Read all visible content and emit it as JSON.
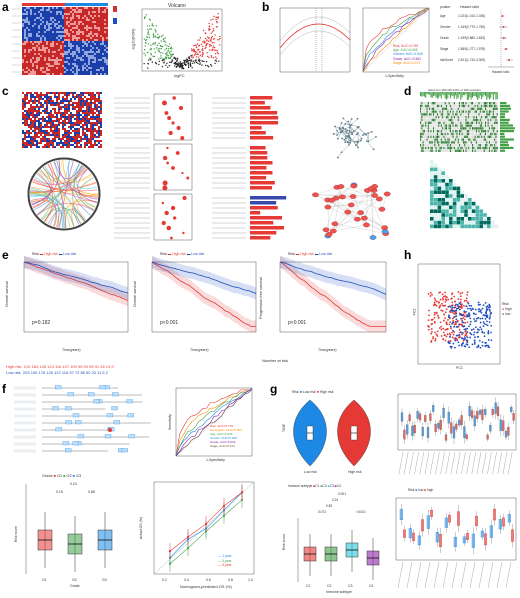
{
  "panels": {
    "a": "a",
    "b": "b",
    "c": "c",
    "d": "d",
    "e": "e",
    "f": "f",
    "g": "g",
    "h": "h"
  },
  "a": {
    "volcano_title": "Volcano",
    "volcano_xlabel": "logFC",
    "volcano_ylabel": "-log10(FDR)"
  },
  "b": {
    "roc_xlabel": "1-Specificity",
    "roc_ylabel": "Sensitivity",
    "roc_legend": [
      "Risk, AUC=0.759",
      "Age, AUC=0.605",
      "Gender, AUC=0.548",
      "Grade, AUC=0.563",
      "Stage, AUC=0.671"
    ],
    "forest_headers": [
      "pvalue",
      "Hazard ratio"
    ],
    "forest_rows": [
      {
        "name": "Age",
        "hr": "1.023(1.010-1.036)"
      },
      {
        "name": "Gender",
        "hr": "1.169(0.779-1.755)"
      },
      {
        "name": "Grade",
        "hr": "1.199(0.880-1.633)"
      },
      {
        "name": "Stage",
        "hr": "1.589(1.277-1.978)"
      },
      {
        "name": "riskScore",
        "hr": "2.401(1.744-3.305)"
      }
    ],
    "forest_xlabel": "Hazard ratio"
  },
  "d": {
    "title": "Altered in 180 (95.24%) of 189 samples."
  },
  "e": {
    "km": [
      {
        "ylabel": "Overall survival",
        "pvalue": "p=0.182",
        "xlabel": "Time(years)"
      },
      {
        "ylabel": "Overall survival",
        "pvalue": "p<0.001",
        "xlabel": "Time(years)"
      },
      {
        "ylabel": "Progression free survival",
        "pvalue": "p<0.001",
        "xlabel": "Time(years)"
      }
    ],
    "legend_risk": "Risk",
    "legend_high": "High risk",
    "legend_low": "Low risk",
    "risk_table_title": "Number at risk",
    "risk_rows": [
      {
        "label": "High risk",
        "values": "210 184 145 124 116 107 100 95 90 59 31 28 13 9"
      },
      {
        "label": "Low risk",
        "values": "203 190 178 126 122 116 97 72 66 50 20 11 6 2"
      }
    ]
  },
  "h": {
    "xlabel": "PC1",
    "ylabel": "PC2",
    "legend_title": "Risk",
    "legend_high": "high",
    "legend_low": "low"
  },
  "f": {
    "roc_legend": [
      "Risk, AUC=0.778",
      "Nomogram, AUC=0.803",
      "Age, AUC=0.605",
      "Gender, AUC=0.548",
      "Grade, AUC=0.563",
      "Stage, AUC=0.671"
    ],
    "roc_xlabel": "1-Specificity",
    "roc_ylabel": "Sensitivity",
    "box_legend_title": "Grade",
    "box_groups": [
      "G1",
      "G2",
      "G3"
    ],
    "box_pvals": [
      "0.24",
      "0.15",
      "0.85"
    ],
    "box_xlabel": "Grade",
    "box_ylabel": "Risk score",
    "calib_xlabel": "Nomogram-predicted OS (%)",
    "calib_ylabel": "Actual OS (%)",
    "calib_legend": [
      "1-year",
      "3-year",
      "5-year"
    ],
    "calib_ticks": [
      "0.2",
      "0.4",
      "0.6",
      "0.8",
      "1.0"
    ],
    "nomo_rows": [
      "Points",
      "Age",
      "Gender",
      "Grade",
      "Stage",
      "Risk",
      "Total Points",
      "Pr( futime < 1 )",
      "Pr( futime < 3 )",
      "Pr( futime < 5 )"
    ]
  },
  "g": {
    "violin_legend_title": "Risk",
    "violin_legend": [
      "Low risk",
      "High risk"
    ],
    "violin_groups": [
      "Low risk",
      "High risk"
    ],
    "violin_ylabel": "TIDE",
    "immune_legend_title": "Immune subtype",
    "immune_groups": [
      "C1",
      "C2",
      "C3",
      "C4"
    ],
    "immune_pvals": [
      "0.001",
      "0.24",
      "0.83",
      "0.072",
      "<0.001"
    ],
    "immune_ylabel": "Risk score",
    "immune_xlabel": "Immune subtype",
    "box_legend_title": "Risk",
    "box_legend": [
      "low",
      "high"
    ]
  }
}
